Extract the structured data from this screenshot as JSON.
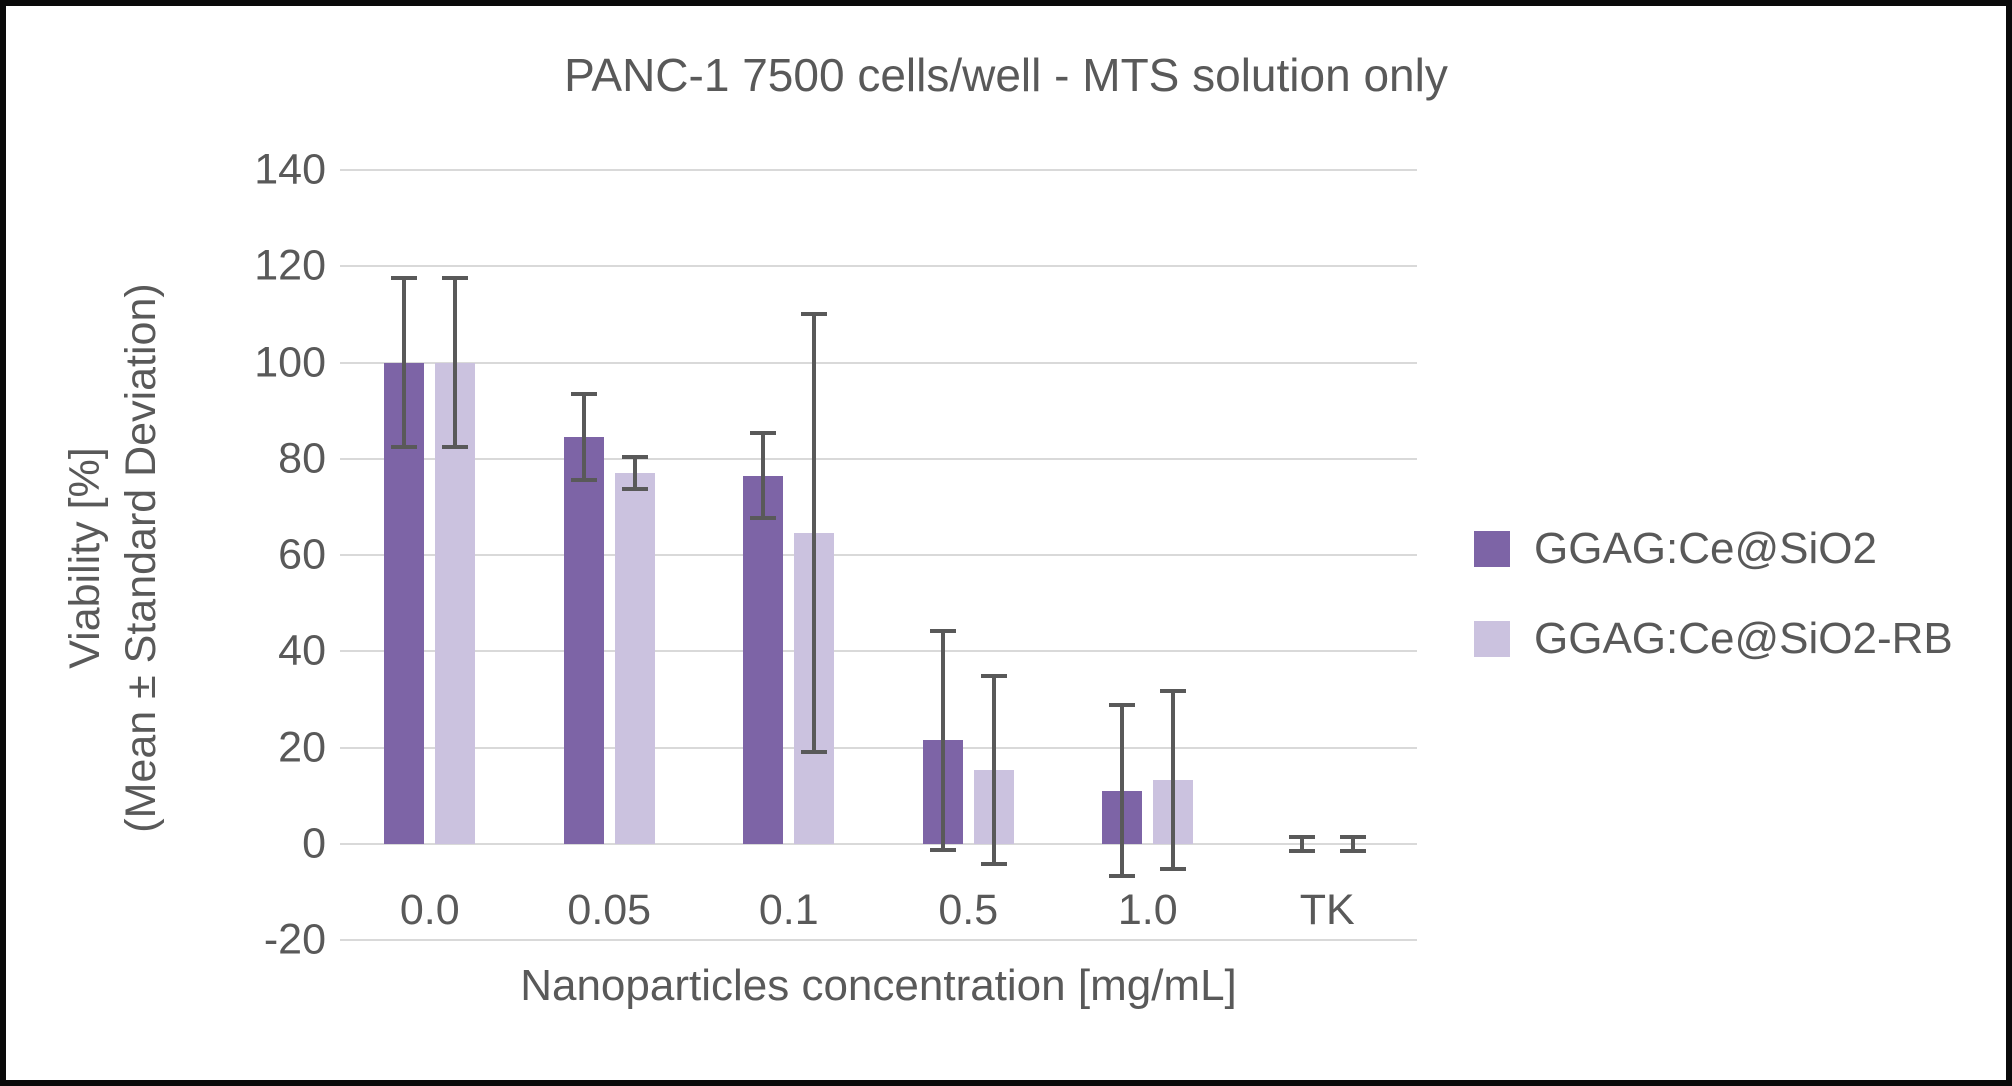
{
  "chart_data": {
    "type": "bar",
    "title": "PANC-1 7500 cells/well - MTS solution only",
    "xlabel": "Nanoparticles concentration [mg/mL]",
    "ylabel_line1": "Viability [%]",
    "ylabel_line2": "(Mean ± Standard Deviation)",
    "categories": [
      "0.0",
      "0.05",
      "0.1",
      "0.5",
      "1.0",
      "TK"
    ],
    "ylim": [
      -20,
      140
    ],
    "ytick_step": 20,
    "ytick_labels": [
      "140",
      "120",
      "100",
      "80",
      "60",
      "40",
      "20",
      "0",
      "-20"
    ],
    "grid": "horizontal",
    "legend_position": "right",
    "series": [
      {
        "name": "GGAG:Ce@SiO2",
        "color": "#7d64a6",
        "values": [
          100,
          84.5,
          76.5,
          21.5,
          11,
          0
        ],
        "error": [
          17.6,
          9,
          8.8,
          22.7,
          17.8,
          1.5
        ]
      },
      {
        "name": "GGAG:Ce@SiO2-RB",
        "color": "#cbc2df",
        "values": [
          100,
          77,
          64.5,
          15.3,
          13.3,
          0
        ],
        "error": [
          17.6,
          3.3,
          45.5,
          19.5,
          18.5,
          1.5
        ]
      }
    ],
    "colors": {
      "gridline": "#d9d9d9",
      "text": "#595959",
      "error_bar": "#595959",
      "frame_border": "#0a0a0a",
      "background": "#ffffff"
    }
  }
}
